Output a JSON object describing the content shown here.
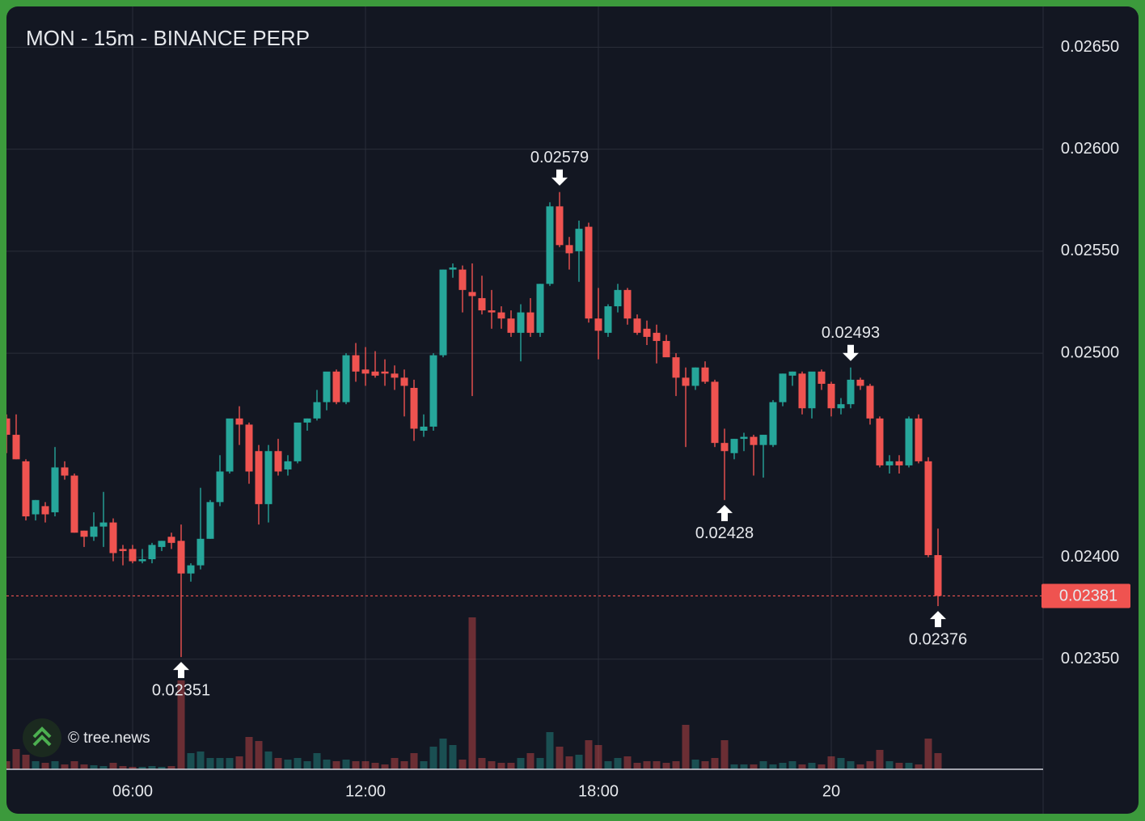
{
  "chart_data": {
    "type": "candlestick",
    "title": "MON - 15m - BINANCE PERP",
    "watermark": "© tree.news",
    "up_color": "#26a69a",
    "down_color": "#ef5350",
    "grid": true,
    "categories": [
      "02:45",
      "03:00",
      "03:15",
      "03:30",
      "03:45",
      "04:00",
      "04:15",
      "04:30",
      "04:45",
      "05:00",
      "05:15",
      "05:30",
      "05:45",
      "06:00",
      "06:15",
      "06:30",
      "06:45",
      "07:00",
      "07:15",
      "07:30",
      "07:45",
      "08:00",
      "08:15",
      "08:30",
      "08:45",
      "09:00",
      "09:15",
      "09:30",
      "09:45",
      "10:00",
      "10:15",
      "10:30",
      "10:45",
      "11:00",
      "11:15",
      "11:30",
      "11:45",
      "12:00",
      "12:15",
      "12:30",
      "12:45",
      "13:00",
      "13:15",
      "13:30",
      "13:45",
      "14:00",
      "14:15",
      "14:30",
      "14:45",
      "15:00",
      "15:15",
      "15:30",
      "15:45",
      "16:00",
      "16:15",
      "16:30",
      "16:45",
      "17:00",
      "17:15",
      "17:30",
      "17:45",
      "18:00",
      "18:15",
      "18:30",
      "18:45",
      "19:00",
      "19:15",
      "19:30",
      "19:45",
      "20:00",
      "20:15",
      "20:30",
      "20:45",
      "21:00",
      "21:15",
      "21:30",
      "21:45",
      "22:00",
      "22:15",
      "22:30",
      "22:45",
      "23:00",
      "23:15",
      "23:30",
      "23:45",
      "00:00",
      "00:15",
      "00:30",
      "00:45",
      "01:00",
      "01:15",
      "01:30",
      "01:45",
      "02:00",
      "02:15",
      "02:30",
      "02:45"
    ],
    "open": [
      0.02468,
      0.0246,
      0.02447,
      0.02421,
      0.02425,
      0.02422,
      0.02444,
      0.0244,
      0.02413,
      0.0241,
      0.02415,
      0.02417,
      0.02404,
      0.02404,
      0.02398,
      0.02399,
      0.02405,
      0.0241,
      0.02408,
      0.02392,
      0.02396,
      0.02409,
      0.02427,
      0.02442,
      0.02468,
      0.02465,
      0.02452,
      0.02426,
      0.02452,
      0.02443,
      0.02447,
      0.02466,
      0.02468,
      0.02476,
      0.02491,
      0.02476,
      0.02499,
      0.02492,
      0.02491,
      0.02491,
      0.0249,
      0.02488,
      0.02483,
      0.02462,
      0.02464,
      0.02499,
      0.02541,
      0.02541,
      0.0253,
      0.02527,
      0.02521,
      0.0252,
      0.02517,
      0.0251,
      0.0252,
      0.0251,
      0.02534,
      0.02572,
      0.02553,
      0.0255,
      0.02562,
      0.02517,
      0.0251,
      0.02523,
      0.02531,
      0.02517,
      0.02512,
      0.0251,
      0.02506,
      0.02498,
      0.02488,
      0.02484,
      0.02493,
      0.02486,
      0.02456,
      0.02451,
      0.02458,
      0.02459,
      0.02455,
      0.02455,
      0.02476,
      0.02489,
      0.0249,
      0.02473,
      0.02491,
      0.02485,
      0.02473,
      0.02475,
      0.02487,
      0.02484,
      0.02468,
      0.02445,
      0.02447,
      0.02445,
      0.02468,
      0.02447,
      0.02401
    ],
    "high": [
      0.0247,
      0.0247,
      0.02448,
      0.02428,
      0.02427,
      0.02454,
      0.02447,
      0.02441,
      0.02413,
      0.02422,
      0.02432,
      0.02419,
      0.02406,
      0.02406,
      0.02404,
      0.02407,
      0.02408,
      0.02412,
      0.02416,
      0.02397,
      0.02434,
      0.02428,
      0.0245,
      0.02467,
      0.02474,
      0.02466,
      0.02455,
      0.02455,
      0.02458,
      0.0245,
      0.02465,
      0.02468,
      0.02482,
      0.0249,
      0.02492,
      0.025,
      0.02505,
      0.02503,
      0.02501,
      0.02497,
      0.02494,
      0.02492,
      0.02487,
      0.0247,
      0.025,
      0.02541,
      0.02544,
      0.02543,
      0.02544,
      0.02538,
      0.02531,
      0.02523,
      0.02521,
      0.02524,
      0.02527,
      0.02534,
      0.02574,
      0.02579,
      0.02557,
      0.02565,
      0.02564,
      0.02532,
      0.02524,
      0.02534,
      0.02532,
      0.02519,
      0.02516,
      0.02514,
      0.02509,
      0.025,
      0.02493,
      0.02493,
      0.02496,
      0.02487,
      0.02463,
      0.02458,
      0.02461,
      0.0246,
      0.0246,
      0.02477,
      0.0249,
      0.02491,
      0.02491,
      0.02489,
      0.02492,
      0.02486,
      0.02478,
      0.02493,
      0.02488,
      0.02485,
      0.02469,
      0.0245,
      0.0245,
      0.02469,
      0.0247,
      0.02449,
      0.02414
    ],
    "low": [
      0.02451,
      0.02448,
      0.02418,
      0.02418,
      0.02417,
      0.0242,
      0.02438,
      0.02412,
      0.02405,
      0.02408,
      0.02405,
      0.02398,
      0.02396,
      0.02397,
      0.02397,
      0.02397,
      0.02403,
      0.02404,
      0.02351,
      0.02388,
      0.02394,
      0.02409,
      0.02425,
      0.02441,
      0.02455,
      0.02436,
      0.02416,
      0.02417,
      0.0244,
      0.0244,
      0.02446,
      0.02462,
      0.02467,
      0.02472,
      0.02475,
      0.02475,
      0.02486,
      0.02484,
      0.02488,
      0.02484,
      0.02482,
      0.02469,
      0.02457,
      0.02459,
      0.02462,
      0.02498,
      0.02537,
      0.0252,
      0.02479,
      0.02519,
      0.02512,
      0.02512,
      0.02508,
      0.02496,
      0.02508,
      0.02508,
      0.02533,
      0.02552,
      0.02541,
      0.02535,
      0.02515,
      0.02497,
      0.02508,
      0.0252,
      0.02514,
      0.02509,
      0.02504,
      0.02495,
      0.025,
      0.02479,
      0.02454,
      0.02482,
      0.02485,
      0.02454,
      0.02428,
      0.02448,
      0.02452,
      0.0244,
      0.02439,
      0.02454,
      0.02474,
      0.02484,
      0.0247,
      0.02468,
      0.02482,
      0.02469,
      0.0247,
      0.02473,
      0.02482,
      0.02465,
      0.02444,
      0.02441,
      0.02441,
      0.02444,
      0.02446,
      0.024,
      0.02376
    ],
    "close": [
      0.0246,
      0.02448,
      0.0242,
      0.02428,
      0.02421,
      0.02444,
      0.0244,
      0.02412,
      0.0241,
      0.02415,
      0.02417,
      0.02402,
      0.02403,
      0.02398,
      0.02399,
      0.02406,
      0.02408,
      0.02407,
      0.02392,
      0.02396,
      0.02409,
      0.02427,
      0.02442,
      0.02468,
      0.02465,
      0.02442,
      0.02426,
      0.02452,
      0.02442,
      0.02447,
      0.02466,
      0.02468,
      0.02476,
      0.02491,
      0.02476,
      0.02499,
      0.02491,
      0.0249,
      0.02489,
      0.0249,
      0.02488,
      0.02484,
      0.02463,
      0.02464,
      0.02499,
      0.02541,
      0.02542,
      0.02531,
      0.02528,
      0.02521,
      0.0252,
      0.02517,
      0.0251,
      0.0252,
      0.0251,
      0.02534,
      0.02572,
      0.02553,
      0.02549,
      0.02561,
      0.02517,
      0.02511,
      0.02523,
      0.02531,
      0.02517,
      0.0251,
      0.02508,
      0.02506,
      0.02498,
      0.02488,
      0.02484,
      0.02493,
      0.02486,
      0.02456,
      0.02452,
      0.02458,
      0.02459,
      0.02455,
      0.0246,
      0.02476,
      0.0249,
      0.02491,
      0.02473,
      0.02491,
      0.02485,
      0.02473,
      0.02475,
      0.02487,
      0.02484,
      0.02468,
      0.02445,
      0.02447,
      0.02445,
      0.02468,
      0.02447,
      0.02401,
      0.02381
    ],
    "volume": [
      10,
      25,
      18,
      10,
      8,
      10,
      6,
      10,
      6,
      5,
      4,
      8,
      4,
      3,
      3,
      4,
      3,
      4,
      110,
      20,
      22,
      14,
      14,
      14,
      16,
      40,
      35,
      22,
      14,
      12,
      14,
      10,
      20,
      12,
      10,
      12,
      10,
      10,
      8,
      6,
      14,
      10,
      20,
      10,
      28,
      38,
      30,
      12,
      188,
      14,
      10,
      8,
      8,
      14,
      20,
      14,
      46,
      28,
      16,
      18,
      36,
      30,
      10,
      14,
      16,
      8,
      10,
      10,
      8,
      10,
      55,
      12,
      10,
      14,
      36,
      6,
      6,
      6,
      10,
      6,
      8,
      10,
      6,
      8,
      6,
      16,
      14,
      10,
      6,
      10,
      24,
      10,
      8,
      8,
      6,
      38,
      20
    ],
    "ylim": [
      0.02296,
      0.0267
    ],
    "yticks": [
      {
        "value": 0.0265,
        "label": "0.02650"
      },
      {
        "value": 0.026,
        "label": "0.02600"
      },
      {
        "value": 0.0255,
        "label": "0.02550"
      },
      {
        "value": 0.025,
        "label": "0.02500"
      },
      {
        "value": 0.024,
        "label": "0.02400"
      },
      {
        "value": 0.0235,
        "label": "0.02350"
      }
    ],
    "xticks": [
      {
        "value": "06:00",
        "label": "06:00"
      },
      {
        "value": "12:00",
        "label": "12:00"
      },
      {
        "value": "18:00",
        "label": "18:00"
      },
      {
        "value": "00:00",
        "label": "20"
      }
    ],
    "last_price": 0.02381,
    "annotations": [
      {
        "label": "0.02351",
        "category": "07:15",
        "kind": "low"
      },
      {
        "label": "0.02579",
        "category": "17:00",
        "kind": "high"
      },
      {
        "label": "0.02428",
        "category": "21:15",
        "kind": "low"
      },
      {
        "label": "0.02493",
        "category": "00:30",
        "kind": "high"
      },
      {
        "label": "0.02376",
        "category": "02:45",
        "kind": "low"
      }
    ]
  }
}
